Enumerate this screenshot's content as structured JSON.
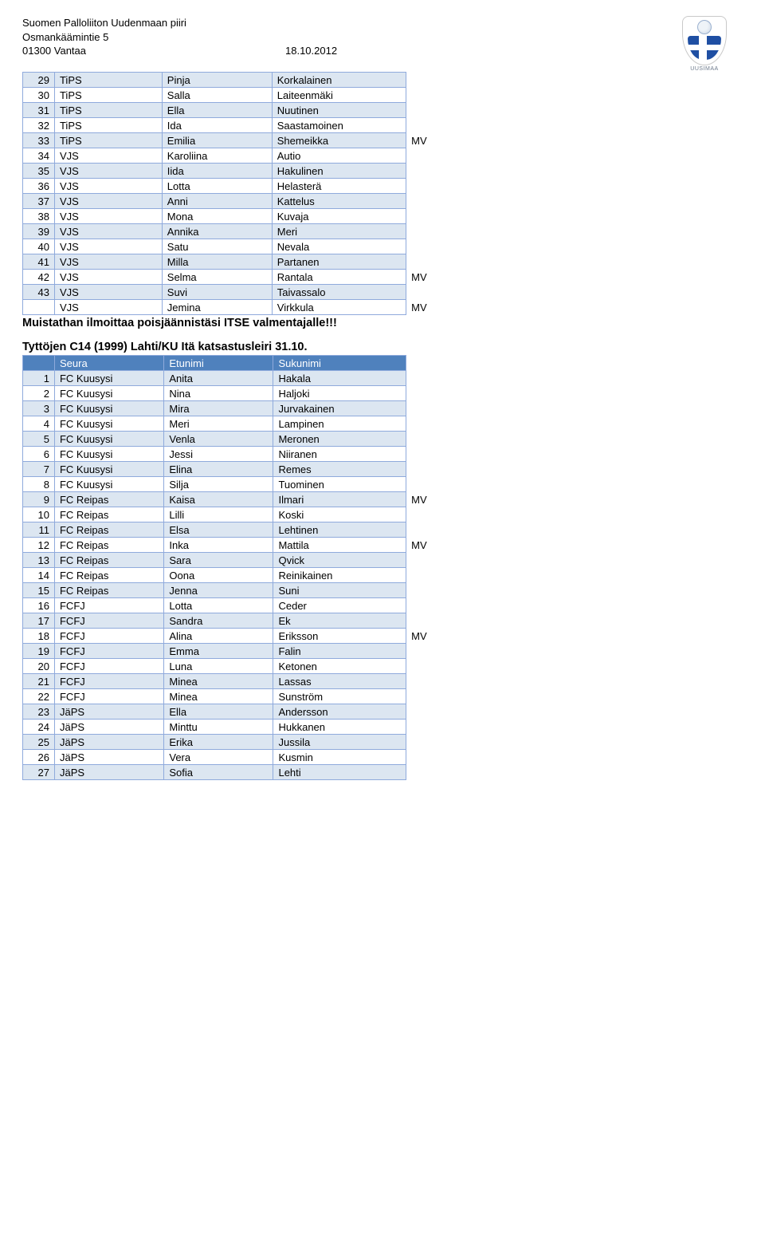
{
  "header": {
    "org": "Suomen Palloliiton Uudenmaan piiri",
    "street": "Osmankäämintie 5",
    "city": "01300 Vantaa",
    "date": "18.10.2012",
    "logo_caption": "UUSIMAA"
  },
  "colors": {
    "header_bg": "#4f81bd",
    "row_even": "#dce6f1",
    "row_odd": "#ffffff",
    "border": "#8faadc"
  },
  "table1": {
    "start_num": 29,
    "rows": [
      {
        "n": 29,
        "club": "TiPS",
        "first": "Pinja",
        "last": "Korkalainen",
        "mv": ""
      },
      {
        "n": 30,
        "club": "TiPS",
        "first": "Salla",
        "last": "Laiteenmäki",
        "mv": ""
      },
      {
        "n": 31,
        "club": "TiPS",
        "first": "Ella",
        "last": "Nuutinen",
        "mv": ""
      },
      {
        "n": 32,
        "club": "TiPS",
        "first": "Ida",
        "last": "Saastamoinen",
        "mv": ""
      },
      {
        "n": 33,
        "club": "TiPS",
        "first": "Emilia",
        "last": "Shemeikka",
        "mv": "MV"
      },
      {
        "n": 34,
        "club": "VJS",
        "first": "Karoliina",
        "last": "Autio",
        "mv": ""
      },
      {
        "n": 35,
        "club": "VJS",
        "first": "Iida",
        "last": "Hakulinen",
        "mv": ""
      },
      {
        "n": 36,
        "club": "VJS",
        "first": "Lotta",
        "last": "Helasterä",
        "mv": ""
      },
      {
        "n": 37,
        "club": "VJS",
        "first": "Anni",
        "last": "Kattelus",
        "mv": ""
      },
      {
        "n": 38,
        "club": "VJS",
        "first": "Mona",
        "last": "Kuvaja",
        "mv": ""
      },
      {
        "n": 39,
        "club": "VJS",
        "first": "Annika",
        "last": "Meri",
        "mv": ""
      },
      {
        "n": 40,
        "club": "VJS",
        "first": "Satu",
        "last": "Nevala",
        "mv": ""
      },
      {
        "n": 41,
        "club": "VJS",
        "first": "Milla",
        "last": "Partanen",
        "mv": ""
      },
      {
        "n": 42,
        "club": "VJS",
        "first": "Selma",
        "last": "Rantala",
        "mv": "MV"
      },
      {
        "n": 43,
        "club": "VJS",
        "first": "Suvi",
        "last": "Taivassalo",
        "mv": ""
      },
      {
        "n": "",
        "club": "VJS",
        "first": "Jemina",
        "last": "Virkkula",
        "mv": "MV"
      }
    ]
  },
  "notice": "Muistathan ilmoittaa poisjäännistäsi ITSE valmentajalle!!!",
  "section2_title": "Tyttöjen C14 (1999) Lahti/KU Itä katsastusleiri 31.10.",
  "table2": {
    "headers": {
      "club": "Seura",
      "first": "Etunimi",
      "last": "Sukunimi"
    },
    "rows": [
      {
        "n": 1,
        "club": "FC Kuusysi",
        "first": "Anita",
        "last": "Hakala",
        "mv": ""
      },
      {
        "n": 2,
        "club": "FC Kuusysi",
        "first": "Nina",
        "last": "Haljoki",
        "mv": ""
      },
      {
        "n": 3,
        "club": "FC Kuusysi",
        "first": "Mira",
        "last": "Jurvakainen",
        "mv": ""
      },
      {
        "n": 4,
        "club": "FC Kuusysi",
        "first": "Meri",
        "last": "Lampinen",
        "mv": ""
      },
      {
        "n": 5,
        "club": "FC Kuusysi",
        "first": "Venla",
        "last": "Meronen",
        "mv": ""
      },
      {
        "n": 6,
        "club": "FC Kuusysi",
        "first": "Jessi",
        "last": "Niiranen",
        "mv": ""
      },
      {
        "n": 7,
        "club": "FC Kuusysi",
        "first": "Elina",
        "last": "Remes",
        "mv": ""
      },
      {
        "n": 8,
        "club": "FC Kuusysi",
        "first": "Silja",
        "last": "Tuominen",
        "mv": ""
      },
      {
        "n": 9,
        "club": "FC Reipas",
        "first": "Kaisa",
        "last": "Ilmari",
        "mv": "MV"
      },
      {
        "n": 10,
        "club": "FC Reipas",
        "first": "Lilli",
        "last": "Koski",
        "mv": ""
      },
      {
        "n": 11,
        "club": "FC Reipas",
        "first": "Elsa",
        "last": "Lehtinen",
        "mv": ""
      },
      {
        "n": 12,
        "club": "FC Reipas",
        "first": "Inka",
        "last": "Mattila",
        "mv": "MV"
      },
      {
        "n": 13,
        "club": "FC Reipas",
        "first": "Sara",
        "last": "Qvick",
        "mv": ""
      },
      {
        "n": 14,
        "club": "FC Reipas",
        "first": "Oona",
        "last": "Reinikainen",
        "mv": ""
      },
      {
        "n": 15,
        "club": "FC Reipas",
        "first": "Jenna",
        "last": "Suni",
        "mv": ""
      },
      {
        "n": 16,
        "club": "FCFJ",
        "first": "Lotta",
        "last": "Ceder",
        "mv": ""
      },
      {
        "n": 17,
        "club": "FCFJ",
        "first": "Sandra",
        "last": "Ek",
        "mv": ""
      },
      {
        "n": 18,
        "club": "FCFJ",
        "first": "Alina",
        "last": "Eriksson",
        "mv": "MV"
      },
      {
        "n": 19,
        "club": "FCFJ",
        "first": "Emma",
        "last": "Falin",
        "mv": ""
      },
      {
        "n": 20,
        "club": "FCFJ",
        "first": "Luna",
        "last": "Ketonen",
        "mv": ""
      },
      {
        "n": 21,
        "club": "FCFJ",
        "first": "Minea",
        "last": "Lassas",
        "mv": ""
      },
      {
        "n": 22,
        "club": "FCFJ",
        "first": "Minea",
        "last": "Sunström",
        "mv": ""
      },
      {
        "n": 23,
        "club": "JäPS",
        "first": "Ella",
        "last": "Andersson",
        "mv": ""
      },
      {
        "n": 24,
        "club": "JäPS",
        "first": "Minttu",
        "last": "Hukkanen",
        "mv": ""
      },
      {
        "n": 25,
        "club": "JäPS",
        "first": "Erika",
        "last": "Jussila",
        "mv": ""
      },
      {
        "n": 26,
        "club": "JäPS",
        "first": "Vera",
        "last": "Kusmin",
        "mv": ""
      },
      {
        "n": 27,
        "club": "JäPS",
        "first": "Sofia",
        "last": "Lehti",
        "mv": ""
      }
    ]
  }
}
